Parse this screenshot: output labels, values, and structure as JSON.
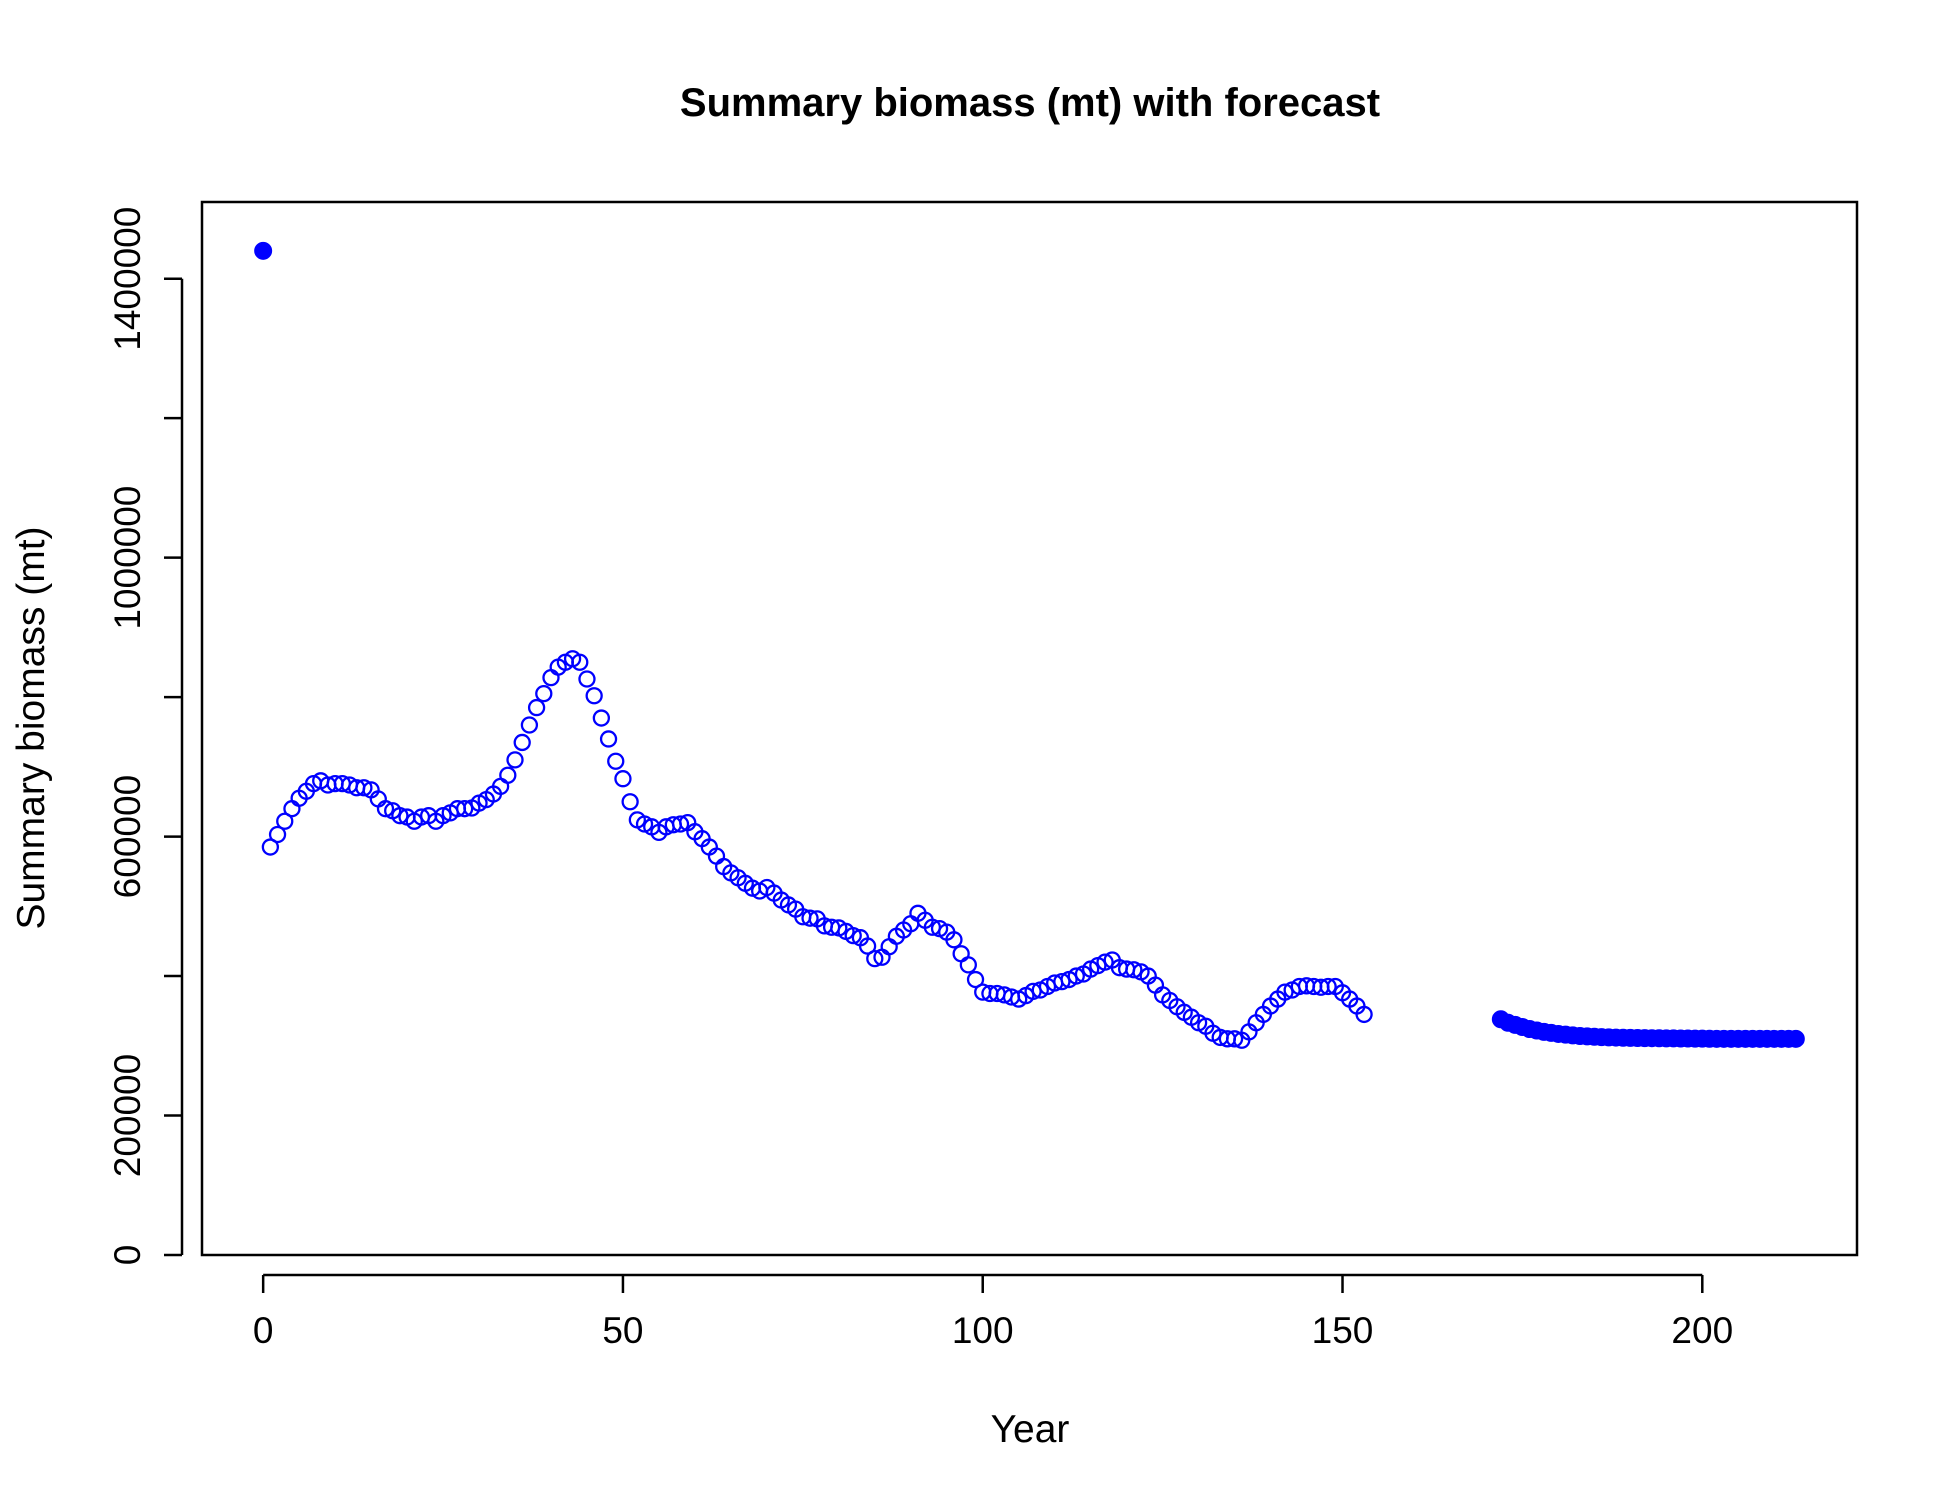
{
  "chart_data": {
    "type": "scatter",
    "title": "Summary biomass (mt) with forecast",
    "xlabel": "Year",
    "ylabel": "Summary biomass (mt)",
    "xlim": [
      -8.5,
      221.5
    ],
    "ylim": [
      0,
      1510000
    ],
    "x_ticks": [
      0,
      50,
      100,
      150,
      200
    ],
    "x_tick_labels": [
      "0",
      "50",
      "100",
      "150",
      "200"
    ],
    "y_ticks": [
      0,
      200000,
      400000,
      600000,
      800000,
      1000000,
      1200000,
      1400000
    ],
    "y_tick_labels": [
      "0",
      "200000",
      "",
      "600000",
      "",
      "1000000",
      "",
      "1400000"
    ],
    "grid": false,
    "legend": "none",
    "colors": {
      "points": "#0000ff",
      "axes": "#000000"
    },
    "series": [
      {
        "marker": "filled",
        "x": [
          0
        ],
        "y": [
          1440000
        ]
      },
      {
        "marker": "open",
        "x": [
          1,
          2,
          3,
          4,
          5,
          6,
          7,
          8,
          9,
          10,
          11,
          12,
          13,
          14,
          15,
          16,
          17,
          18,
          19,
          20,
          21,
          22,
          23,
          24,
          25,
          26,
          27,
          28,
          29,
          30,
          31,
          32,
          33,
          34,
          35,
          36,
          37,
          38,
          39,
          40,
          41,
          42,
          43,
          44,
          45,
          46,
          47,
          48,
          49,
          50,
          51,
          52,
          53,
          54,
          55,
          56,
          57,
          58,
          59,
          60,
          61,
          62,
          63,
          64,
          65,
          66,
          67,
          68,
          69,
          70,
          71,
          72,
          73,
          74,
          75,
          76,
          77,
          78,
          79,
          80,
          81,
          82,
          83,
          84,
          85,
          86,
          87,
          88,
          89,
          90,
          91,
          92,
          93,
          94,
          95,
          96,
          97,
          98,
          99,
          100,
          101,
          102,
          103,
          104,
          105,
          106,
          107,
          108,
          109,
          110,
          111,
          112,
          113,
          114,
          115,
          116,
          117,
          118,
          119,
          120,
          121,
          122,
          123,
          124,
          125,
          126,
          127,
          128,
          129,
          130,
          131,
          132,
          133,
          134,
          135,
          136,
          137,
          138,
          139,
          140,
          141,
          142,
          143,
          144,
          145,
          146,
          147,
          148,
          149,
          150,
          151,
          152,
          153
        ],
        "y": [
          585000,
          603000,
          622000,
          640000,
          655000,
          665000,
          676000,
          680000,
          674000,
          676000,
          676000,
          674000,
          670000,
          670000,
          667000,
          654000,
          640000,
          637000,
          630000,
          628000,
          622000,
          628000,
          630000,
          622000,
          630000,
          634000,
          640000,
          640000,
          641000,
          648000,
          653000,
          661000,
          672000,
          688000,
          710000,
          735000,
          760000,
          785000,
          805000,
          828000,
          843000,
          850000,
          855000,
          850000,
          826000,
          802000,
          770000,
          740000,
          708000,
          683000,
          650000,
          624000,
          618000,
          614000,
          606000,
          614000,
          617000,
          618000,
          620000,
          607000,
          597000,
          585000,
          572000,
          557000,
          548000,
          541000,
          533000,
          526000,
          522000,
          527000,
          519000,
          509000,
          502000,
          496000,
          485000,
          483000,
          482000,
          472000,
          470000,
          469000,
          464000,
          458000,
          455000,
          443000,
          425000,
          427000,
          442000,
          457000,
          466000,
          475000,
          490000,
          480000,
          470000,
          468000,
          463000,
          452000,
          432000,
          416000,
          395000,
          377000,
          375000,
          375000,
          373000,
          370000,
          367000,
          372000,
          378000,
          380000,
          385000,
          390000,
          392000,
          395000,
          400000,
          403000,
          410000,
          415000,
          420000,
          423000,
          412000,
          410000,
          409000,
          406000,
          400000,
          387000,
          373000,
          365000,
          356000,
          348000,
          341000,
          333000,
          328000,
          318000,
          312000,
          310000,
          310000,
          308000,
          320000,
          333000,
          345000,
          357000,
          367000,
          377000,
          380000,
          385000,
          386000,
          385000,
          384000,
          385000,
          385000,
          376000,
          367000,
          357000,
          345000
        ]
      },
      {
        "marker": "filled",
        "x": [
          172,
          173,
          174,
          175,
          176,
          177,
          178,
          179,
          180,
          181,
          182,
          183,
          184,
          185,
          186,
          187,
          188,
          189,
          190,
          191,
          192,
          193,
          194,
          195,
          196,
          197,
          198,
          199,
          200,
          201,
          202,
          203,
          204,
          205,
          206,
          207,
          208,
          209,
          210,
          211,
          212,
          213
        ],
        "y": [
          338000,
          333000,
          330000,
          327000,
          324000,
          322000,
          320000,
          318500,
          317000,
          316000,
          315000,
          314000,
          313500,
          313000,
          312500,
          312000,
          311800,
          311500,
          311300,
          311100,
          311000,
          310900,
          310800,
          310700,
          310600,
          310500,
          310400,
          310300,
          310200,
          310100,
          310000,
          310000,
          310000,
          310000,
          310000,
          310000,
          310000,
          310000,
          310000,
          310000,
          310000,
          310000
        ]
      }
    ]
  }
}
